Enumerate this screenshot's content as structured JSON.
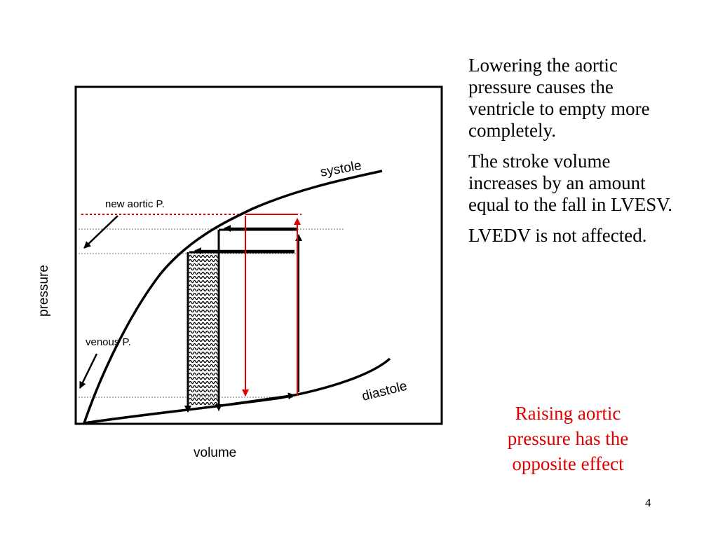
{
  "diagram": {
    "axis_x_label": "volume",
    "axis_y_label": "pressure",
    "systole_label": "systole",
    "diastole_label": "diastole",
    "new_aortic_label": "new aortic P.",
    "venous_label": "venous P."
  },
  "notes": [
    "Lowering the aortic pressure causes the ventricle to empty more completely.",
    "The stroke volume increases by an amount equal to the fall in LVESV.",
    "LVEDV is not affected."
  ],
  "highlight_note": "Raising aortic pressure has the opposite effect",
  "slide_number": "4",
  "colors": {
    "highlight": "#e00000",
    "ink": "#000000"
  }
}
